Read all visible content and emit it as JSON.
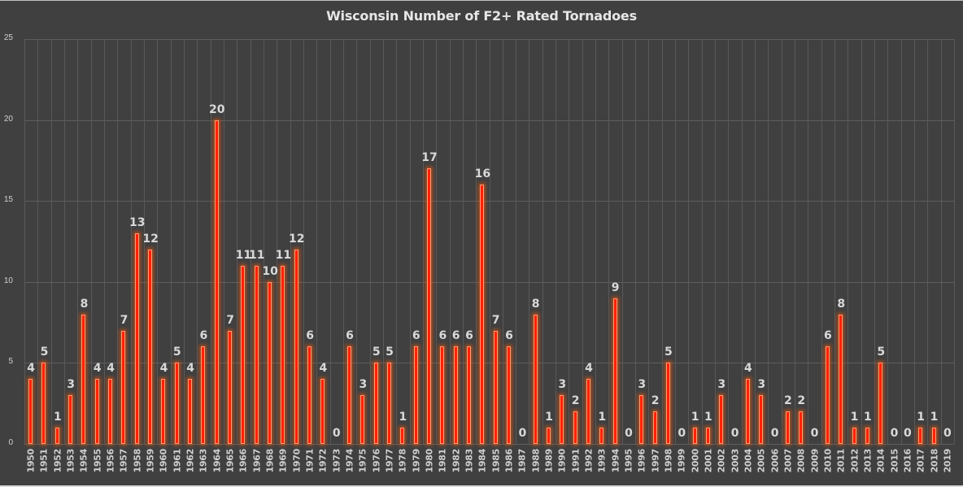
{
  "chart_data": {
    "type": "bar",
    "title": "Wisconsin Number of F2+ Rated Tornadoes",
    "xlabel": "",
    "ylabel": "",
    "ylim": [
      0,
      25
    ],
    "yticks": [
      0,
      5,
      10,
      15,
      20,
      25
    ],
    "grid": true,
    "legend": null,
    "colors": {
      "bar": "#ff2200",
      "bar_glow": "#ff5a00",
      "background": "#404040",
      "text": "#d9d9d9"
    },
    "categories": [
      "1950",
      "1951",
      "1952",
      "1953",
      "1954",
      "1955",
      "1956",
      "1957",
      "1958",
      "1959",
      "1960",
      "1961",
      "1962",
      "1963",
      "1964",
      "1965",
      "1966",
      "1967",
      "1968",
      "1969",
      "1970",
      "1971",
      "1972",
      "1973",
      "1974",
      "1975",
      "1976",
      "1977",
      "1978",
      "1979",
      "1980",
      "1981",
      "1982",
      "1983",
      "1984",
      "1985",
      "1986",
      "1987",
      "1988",
      "1989",
      "1990",
      "1991",
      "1992",
      "1993",
      "1994",
      "1995",
      "1996",
      "1997",
      "1998",
      "1999",
      "2000",
      "2001",
      "2002",
      "2003",
      "2004",
      "2005",
      "2006",
      "2007",
      "2008",
      "2009",
      "2010",
      "2011",
      "2012",
      "2013",
      "2014",
      "2015",
      "2016",
      "2017",
      "2018",
      "2019"
    ],
    "values": [
      4,
      5,
      1,
      3,
      8,
      4,
      4,
      7,
      13,
      12,
      4,
      5,
      4,
      6,
      20,
      7,
      11,
      11,
      10,
      11,
      12,
      6,
      4,
      0,
      6,
      3,
      5,
      5,
      1,
      6,
      17,
      6,
      6,
      6,
      16,
      7,
      6,
      0,
      8,
      1,
      3,
      2,
      4,
      1,
      9,
      0,
      3,
      2,
      5,
      0,
      1,
      1,
      3,
      0,
      4,
      3,
      0,
      2,
      2,
      0,
      6,
      8,
      1,
      1,
      5,
      0,
      0,
      1,
      1,
      0
    ]
  }
}
